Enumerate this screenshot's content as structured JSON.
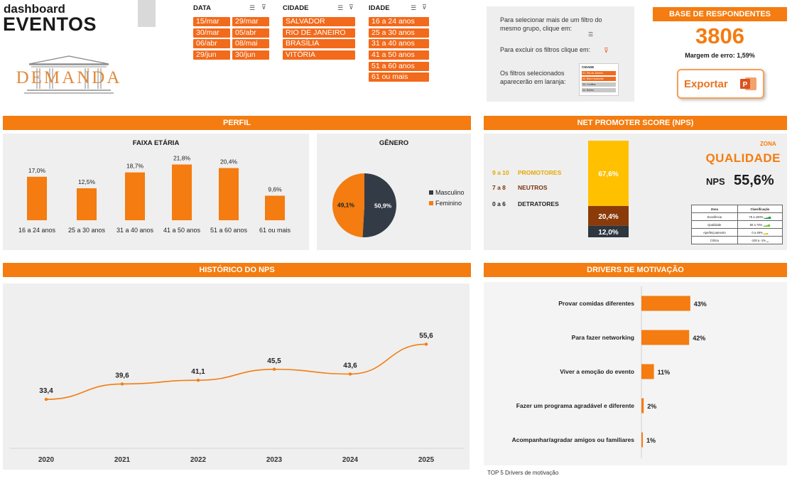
{
  "header": {
    "subtitle": "dashboard",
    "title": "EVENTOS",
    "logo_text": "DEMANDA"
  },
  "filters": {
    "data": {
      "label": "DATA",
      "items": [
        "15/mar",
        "29/mar",
        "30/mar",
        "05/abr",
        "06/abr",
        "08/mai",
        "29/jun",
        "30/jun"
      ]
    },
    "cidade": {
      "label": "CIDADE",
      "items": [
        "SALVADOR",
        "RIO DE JANEIRO",
        "BRASÍLIA",
        "VITÓRIA"
      ]
    },
    "idade": {
      "label": "IDADE",
      "items": [
        "16 a 24 anos",
        "25 a 30 anos",
        "31 a 40 anos",
        "41 a 50 anos",
        "51 a 60 anos",
        "61 ou mais"
      ]
    },
    "multi_select_icon": "multi-select-icon",
    "clear_filter_icon": "clear-filter-icon"
  },
  "instructions": {
    "line1": "Para selecionar mais de um filtro do mesmo grupo, clique em:",
    "line2": "Para excluir os filtros clique em:",
    "line3": "Os filtros selecionados aparecerão em laranja:",
    "mini_label": "CIDADE",
    "mini_items": [
      "01. Rio de Janeiro",
      "02. Belo Horizonte",
      "03. Curitiba",
      "04. Belém"
    ]
  },
  "base": {
    "header": "BASE DE RESPONDENTES",
    "count": "3806",
    "margin": "Margem de erro: 1,59%"
  },
  "export": {
    "label": "Exportar",
    "icon": "powerpoint-icon"
  },
  "sections": {
    "perfil": "PERFIL",
    "nps": "NET PROMOTER SCORE (NPS)",
    "historico": "HISTÓRICO DO NPS",
    "drivers": "DRIVERS DE MOTIVAÇÃO"
  },
  "faixa_etaria": {
    "title": "FAIXA ETÁRIA",
    "categories": [
      "16 a 24 anos",
      "25 a 30 anos",
      "31 a 40 anos",
      "41 a 50 anos",
      "51 a 60 anos",
      "61 ou mais"
    ],
    "labels": [
      "17,0%",
      "12,5%",
      "18,7%",
      "21,8%",
      "20,4%",
      "9,6%"
    ]
  },
  "genero": {
    "title": "GÊNERO",
    "labels": [
      "50,9%",
      "49,1%"
    ],
    "legend": [
      "Masculino",
      "Feminino"
    ]
  },
  "nps_block": {
    "rows": [
      {
        "range": "9 a 10",
        "label": "PROMOTORES"
      },
      {
        "range": "7 a 8",
        "label": "NEUTROS"
      },
      {
        "range": "0 a 6",
        "label": "DETRATORES"
      }
    ],
    "stack_labels": [
      "67,6%",
      "20,4%",
      "12,0%"
    ],
    "zona_label": "ZONA",
    "zona_value": "QUALIDADE",
    "nps_label": "NPS",
    "nps_value": "55,6%",
    "table_headers": [
      "Zona",
      "Classificação"
    ],
    "table_rows": [
      [
        "Excelência",
        "75 a 100%"
      ],
      [
        "Qualidade",
        "50 a 74%"
      ],
      [
        "Aperfeiçoamento",
        "0 a 49%"
      ],
      [
        "Crítica",
        "-100 a -1%"
      ]
    ]
  },
  "historico": {
    "years": [
      "2020",
      "2021",
      "2022",
      "2023",
      "2024",
      "2025"
    ],
    "labels": [
      "33,4",
      "39,6",
      "41,1",
      "45,5",
      "43,6",
      "55,6"
    ]
  },
  "drivers": {
    "categories": [
      "Provar comidas diferentes",
      "Para fazer networking",
      "Viver a emoção do evento",
      "Fazer um programa agradável e diferente",
      "Acompanhar/agradar amigos ou familiares"
    ],
    "labels": [
      "43%",
      "42%",
      "11%",
      "2%",
      "1%"
    ],
    "footnote": "TOP 5 Drivers de motivação"
  },
  "colors": {
    "accent": "#f47c10",
    "chip": "#f26a1b",
    "dark": "#333b46",
    "promotores": "#ffc000",
    "neutros": "#8b3a0a",
    "detratores": "#2e3640",
    "panel": "#efefef"
  },
  "chart_data": [
    {
      "type": "bar",
      "title": "FAIXA ETÁRIA",
      "categories": [
        "16 a 24 anos",
        "25 a 30 anos",
        "31 a 40 anos",
        "41 a 50 anos",
        "51 a 60 anos",
        "61 ou mais"
      ],
      "values": [
        17.0,
        12.5,
        18.7,
        21.8,
        20.4,
        9.6
      ],
      "ylim": [
        0,
        25
      ]
    },
    {
      "type": "pie",
      "title": "GÊNERO",
      "categories": [
        "Masculino",
        "Feminino"
      ],
      "values": [
        50.9,
        49.1
      ]
    },
    {
      "type": "bar",
      "stacked": true,
      "categories": [
        "PROMOTORES",
        "NEUTROS",
        "DETRATORES"
      ],
      "values": [
        67.6,
        20.4,
        12.0
      ]
    },
    {
      "type": "line",
      "title": "HISTÓRICO DO NPS",
      "x": [
        "2020",
        "2021",
        "2022",
        "2023",
        "2024",
        "2025"
      ],
      "values": [
        33.4,
        39.6,
        41.1,
        45.5,
        43.6,
        55.6
      ],
      "ylim": [
        20,
        60
      ]
    },
    {
      "type": "bar",
      "orientation": "horizontal",
      "title": "DRIVERS DE MOTIVAÇÃO",
      "categories": [
        "Provar comidas diferentes",
        "Para fazer networking",
        "Viver a emoção do evento",
        "Fazer um programa agradável e diferente",
        "Acompanhar/agradar amigos ou familiares"
      ],
      "values": [
        43,
        42,
        11,
        2,
        1
      ],
      "xlim": [
        0,
        100
      ]
    }
  ]
}
